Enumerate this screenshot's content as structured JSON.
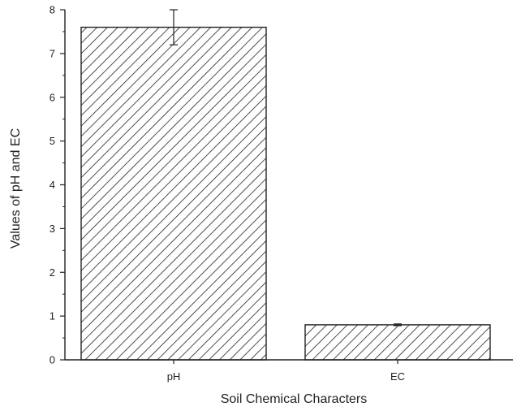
{
  "chart_data": {
    "type": "bar",
    "categories": [
      "pH",
      "EC"
    ],
    "values": [
      7.6,
      0.8
    ],
    "error": [
      0.4,
      0.02
    ],
    "xlabel": "Soil Chemical Characters",
    "ylabel": "Values of pH and EC",
    "ylim": [
      0,
      8
    ],
    "yticks": [
      "0",
      "1",
      "2",
      "3",
      "4",
      "5",
      "6",
      "7",
      "8"
    ],
    "fill": "hatched",
    "bar_color": "#ffffff",
    "stroke_color": "#222222",
    "grid": false,
    "legend": "none"
  }
}
